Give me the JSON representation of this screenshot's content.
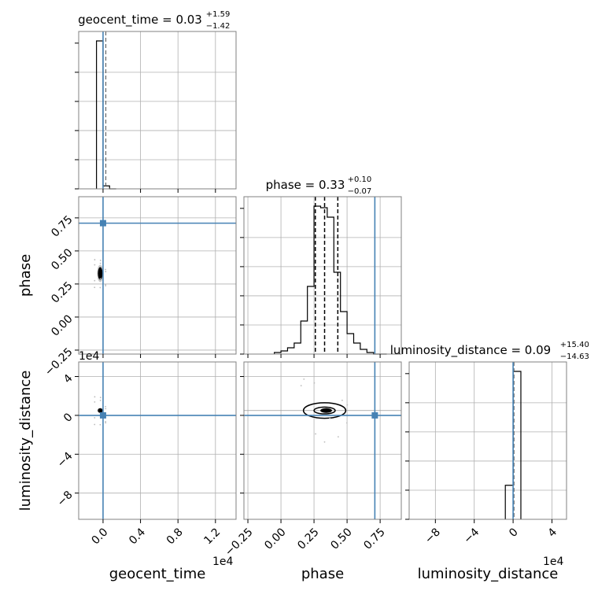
{
  "chart_data": {
    "type": "corner",
    "parameters": [
      {
        "name": "geocent_time",
        "axis_label": "geocent_time",
        "offset_label": "1e4",
        "title_prefix": "geocent_time = ",
        "median": "0.03",
        "upper": "+1.59",
        "lower": "−1.42",
        "range": [
          -0.26,
          1.42
        ],
        "ticks": [
          0.0,
          0.4,
          0.8,
          1.2
        ],
        "tick_labels": [
          "0.0",
          "0.4",
          "0.8",
          "1.2"
        ],
        "truth": 0.0,
        "hist_edges": [
          -0.07,
          0.0,
          0.07,
          0.14
        ],
        "hist_counts": [
          1.0,
          0.02,
          0.0
        ]
      },
      {
        "name": "phase",
        "axis_label": "phase",
        "offset_label": "",
        "title_prefix": "phase = ",
        "median": "0.33",
        "upper": "+0.10",
        "lower": "−0.07",
        "range": [
          -0.28,
          0.91
        ],
        "ticks": [
          -0.25,
          0.0,
          0.25,
          0.5,
          0.75
        ],
        "tick_labels": [
          "−0.25",
          "0.00",
          "0.25",
          "0.50",
          "0.75"
        ],
        "truth": 0.71,
        "quantiles": [
          0.26,
          0.33,
          0.43
        ],
        "hist_edges": [
          -0.05,
          0.0,
          0.05,
          0.1,
          0.15,
          0.2,
          0.25,
          0.3,
          0.35,
          0.4,
          0.45,
          0.5,
          0.55,
          0.6,
          0.65,
          0.7,
          0.75,
          0.8
        ],
        "hist_counts": [
          0.01,
          0.02,
          0.04,
          0.07,
          0.21,
          0.43,
          0.94,
          0.93,
          0.87,
          0.52,
          0.27,
          0.13,
          0.07,
          0.03,
          0.01,
          0.0,
          0.0
        ]
      },
      {
        "name": "luminosity_distance",
        "axis_label": "luminosity_distance",
        "offset_label": "1e4",
        "title_prefix": "luminosity_distance = ",
        "median": "0.09",
        "upper": "+15.40",
        "lower": "−14.63",
        "range": [
          -10.7,
          5.5
        ],
        "ticks": [
          -8,
          -4,
          0,
          4
        ],
        "tick_labels": [
          "−8",
          "−4",
          "0",
          "4"
        ],
        "truth": 0.0,
        "hist_edges": [
          -0.8,
          0.0,
          0.8
        ],
        "hist_counts": [
          0.23,
          1.0
        ]
      }
    ],
    "contour": {
      "x": "phase",
      "y": "luminosity_distance",
      "center": [
        0.33,
        0.5
      ],
      "levels": [
        {
          "x_halfwidth": 0.08,
          "y_halfwidth": 0.35
        },
        {
          "x_halfwidth": 0.16,
          "y_halfwidth": 0.8
        }
      ]
    },
    "truth_color": "#4682b4"
  }
}
